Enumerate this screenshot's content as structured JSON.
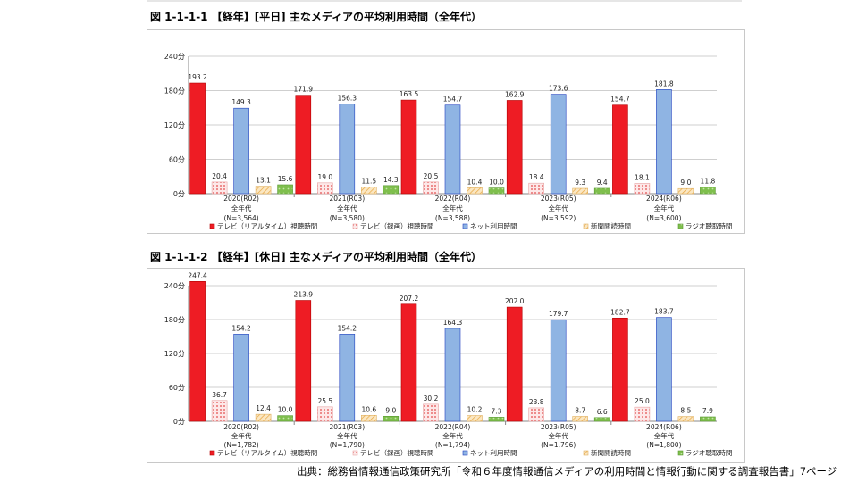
{
  "source": "出典：総務省情報通信政策研究所「令和６年度情報通信メディアの利用時間と情報行動に関する調査報告書」7ページ",
  "colors": {
    "tv_realtime": "#ee1c24",
    "tv_recorded": "#f7c4c4",
    "internet": "#8fb4e3",
    "newspaper": "#f5d79a",
    "radio": "#8fc65a"
  },
  "chart_data": [
    {
      "type": "bar",
      "title": "図 1-1-1-1 【経年】[平日] 主なメディアの平均利用時間（全年代）",
      "ylim": [
        0,
        240
      ],
      "yticks": [
        0,
        60,
        120,
        180,
        240
      ],
      "ytick_labels": [
        "0分",
        "60分",
        "120分",
        "180分",
        "240分"
      ],
      "grid": true,
      "legend_position": "bottom",
      "categories": [
        [
          "2020(R02)",
          "全年代",
          "(N=3,564)"
        ],
        [
          "2021(R03)",
          "全年代",
          "(N=3,580)"
        ],
        [
          "2022(R04)",
          "全年代",
          "(N=3,588)"
        ],
        [
          "2023(R05)",
          "全年代",
          "(N=3,592)"
        ],
        [
          "2024(R06)",
          "全年代",
          "(N=3,600)"
        ]
      ],
      "series": [
        {
          "name": "テレビ（リアルタイム）視聴時間",
          "color_key": "tv_realtime",
          "values": [
            193.2,
            171.9,
            163.5,
            162.9,
            154.7
          ]
        },
        {
          "name": "テレビ（録画）視聴時間",
          "color_key": "tv_recorded",
          "values": [
            20.4,
            19.0,
            20.5,
            18.4,
            18.1
          ]
        },
        {
          "name": "ネット利用時間",
          "color_key": "internet",
          "values": [
            149.3,
            156.3,
            154.7,
            173.6,
            181.8
          ]
        },
        {
          "name": "新聞閲読時間",
          "color_key": "newspaper",
          "values": [
            13.1,
            11.5,
            10.4,
            9.3,
            9.0
          ]
        },
        {
          "name": "ラジオ聴取時間",
          "color_key": "radio",
          "values": [
            15.6,
            14.3,
            10.0,
            9.4,
            11.8
          ]
        }
      ]
    },
    {
      "type": "bar",
      "title": "図 1-1-1-2 【経年】[休日] 主なメディアの平均利用時間（全年代）",
      "ylim": [
        0,
        240
      ],
      "yticks": [
        0,
        60,
        120,
        180,
        240
      ],
      "ytick_labels": [
        "0分",
        "60分",
        "120分",
        "180分",
        "240分"
      ],
      "grid": true,
      "legend_position": "bottom",
      "categories": [
        [
          "2020(R02)",
          "全年代",
          "(N=1,782)"
        ],
        [
          "2021(R03)",
          "全年代",
          "(N=1,790)"
        ],
        [
          "2022(R04)",
          "全年代",
          "(N=1,794)"
        ],
        [
          "2023(R05)",
          "全年代",
          "(N=1,796)"
        ],
        [
          "2024(R06)",
          "全年代",
          "(N=1,800)"
        ]
      ],
      "series": [
        {
          "name": "テレビ（リアルタイム）視聴時間",
          "color_key": "tv_realtime",
          "values": [
            247.4,
            213.9,
            207.2,
            202.0,
            182.7
          ]
        },
        {
          "name": "テレビ（録画）視聴時間",
          "color_key": "tv_recorded",
          "values": [
            36.7,
            25.5,
            30.2,
            23.8,
            25.0
          ]
        },
        {
          "name": "ネット利用時間",
          "color_key": "internet",
          "values": [
            154.2,
            154.2,
            164.3,
            179.7,
            183.7
          ]
        },
        {
          "name": "新聞閲読時間",
          "color_key": "newspaper",
          "values": [
            12.4,
            10.6,
            10.2,
            8.7,
            8.5
          ]
        },
        {
          "name": "ラジオ聴取時間",
          "color_key": "radio",
          "values": [
            10.0,
            9.0,
            7.3,
            6.6,
            7.9
          ]
        }
      ]
    }
  ]
}
